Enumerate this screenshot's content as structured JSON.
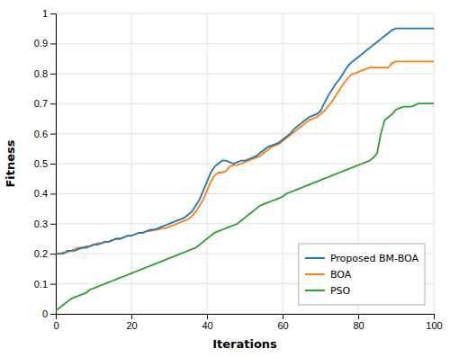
{
  "chart_data": {
    "type": "line",
    "xlabel": "Iterations",
    "ylabel": "Fitness",
    "x": [
      0,
      1,
      2,
      3,
      4,
      5,
      6,
      7,
      8,
      9,
      10,
      11,
      12,
      13,
      14,
      15,
      16,
      17,
      18,
      19,
      20,
      21,
      22,
      23,
      24,
      25,
      26,
      27,
      28,
      29,
      30,
      31,
      32,
      33,
      34,
      35,
      36,
      37,
      38,
      39,
      40,
      41,
      42,
      43,
      44,
      45,
      46,
      47,
      48,
      49,
      50,
      51,
      52,
      53,
      54,
      55,
      56,
      57,
      58,
      59,
      60,
      61,
      62,
      63,
      64,
      65,
      66,
      67,
      68,
      69,
      70,
      71,
      72,
      73,
      74,
      75,
      76,
      77,
      78,
      79,
      80,
      81,
      82,
      83,
      84,
      85,
      86,
      87,
      88,
      89,
      90,
      91,
      92,
      93,
      94,
      95,
      96,
      97,
      98,
      99,
      100
    ],
    "series": [
      {
        "name": "Proposed BM-BOA",
        "values": [
          0.2,
          0.2,
          0.2,
          0.21,
          0.21,
          0.21,
          0.215,
          0.22,
          0.22,
          0.225,
          0.23,
          0.23,
          0.235,
          0.24,
          0.24,
          0.245,
          0.25,
          0.25,
          0.255,
          0.26,
          0.26,
          0.265,
          0.27,
          0.27,
          0.275,
          0.28,
          0.28,
          0.285,
          0.29,
          0.295,
          0.3,
          0.305,
          0.31,
          0.315,
          0.32,
          0.33,
          0.34,
          0.36,
          0.38,
          0.41,
          0.44,
          0.47,
          0.49,
          0.5,
          0.51,
          0.51,
          0.505,
          0.5,
          0.505,
          0.51,
          0.51,
          0.515,
          0.52,
          0.525,
          0.535,
          0.545,
          0.555,
          0.56,
          0.565,
          0.57,
          0.58,
          0.59,
          0.6,
          0.615,
          0.625,
          0.635,
          0.645,
          0.655,
          0.66,
          0.665,
          0.675,
          0.7,
          0.725,
          0.745,
          0.765,
          0.78,
          0.8,
          0.82,
          0.835,
          0.845,
          0.855,
          0.865,
          0.875,
          0.885,
          0.895,
          0.905,
          0.915,
          0.925,
          0.935,
          0.945,
          0.95,
          0.95,
          0.95,
          0.95,
          0.95,
          0.95,
          0.95,
          0.95,
          0.95,
          0.95,
          0.95
        ]
      },
      {
        "name": "BOA",
        "values": [
          0.2,
          0.2,
          0.205,
          0.205,
          0.21,
          0.215,
          0.22,
          0.22,
          0.225,
          0.225,
          0.23,
          0.235,
          0.235,
          0.24,
          0.24,
          0.245,
          0.25,
          0.25,
          0.255,
          0.26,
          0.26,
          0.265,
          0.27,
          0.27,
          0.275,
          0.275,
          0.28,
          0.28,
          0.285,
          0.285,
          0.29,
          0.295,
          0.3,
          0.305,
          0.31,
          0.315,
          0.325,
          0.34,
          0.36,
          0.38,
          0.41,
          0.44,
          0.46,
          0.47,
          0.47,
          0.475,
          0.49,
          0.495,
          0.495,
          0.5,
          0.505,
          0.51,
          0.515,
          0.52,
          0.525,
          0.535,
          0.545,
          0.555,
          0.56,
          0.565,
          0.575,
          0.585,
          0.595,
          0.605,
          0.615,
          0.625,
          0.635,
          0.645,
          0.65,
          0.655,
          0.665,
          0.675,
          0.69,
          0.705,
          0.725,
          0.745,
          0.765,
          0.78,
          0.795,
          0.8,
          0.805,
          0.81,
          0.815,
          0.82,
          0.82,
          0.82,
          0.82,
          0.82,
          0.82,
          0.835,
          0.84,
          0.84,
          0.84,
          0.84,
          0.84,
          0.84,
          0.84,
          0.84,
          0.84,
          0.84,
          0.84
        ]
      },
      {
        "name": "PSO",
        "values": [
          0.01,
          0.02,
          0.03,
          0.04,
          0.05,
          0.055,
          0.06,
          0.065,
          0.07,
          0.08,
          0.085,
          0.09,
          0.095,
          0.1,
          0.105,
          0.11,
          0.115,
          0.12,
          0.125,
          0.13,
          0.135,
          0.14,
          0.145,
          0.15,
          0.155,
          0.16,
          0.165,
          0.17,
          0.175,
          0.18,
          0.185,
          0.19,
          0.195,
          0.2,
          0.205,
          0.21,
          0.215,
          0.22,
          0.23,
          0.24,
          0.25,
          0.26,
          0.27,
          0.275,
          0.28,
          0.285,
          0.29,
          0.295,
          0.3,
          0.31,
          0.32,
          0.33,
          0.34,
          0.35,
          0.36,
          0.365,
          0.37,
          0.375,
          0.38,
          0.385,
          0.39,
          0.4,
          0.405,
          0.41,
          0.415,
          0.42,
          0.425,
          0.43,
          0.435,
          0.44,
          0.445,
          0.45,
          0.455,
          0.46,
          0.465,
          0.47,
          0.475,
          0.48,
          0.485,
          0.49,
          0.495,
          0.5,
          0.505,
          0.51,
          0.52,
          0.535,
          0.6,
          0.645,
          0.655,
          0.665,
          0.68,
          0.685,
          0.69,
          0.69,
          0.69,
          0.695,
          0.7,
          0.7,
          0.7,
          0.7,
          0.7
        ]
      }
    ],
    "xlim": [
      0,
      100
    ],
    "ylim": [
      0,
      1
    ],
    "xticks": [
      0,
      20,
      40,
      60,
      80,
      100
    ],
    "yticks": [
      0,
      0.1,
      0.2,
      0.3,
      0.4,
      0.5,
      0.6,
      0.7,
      0.8,
      0.9,
      1
    ],
    "grid": true,
    "legend": "lower-right"
  }
}
